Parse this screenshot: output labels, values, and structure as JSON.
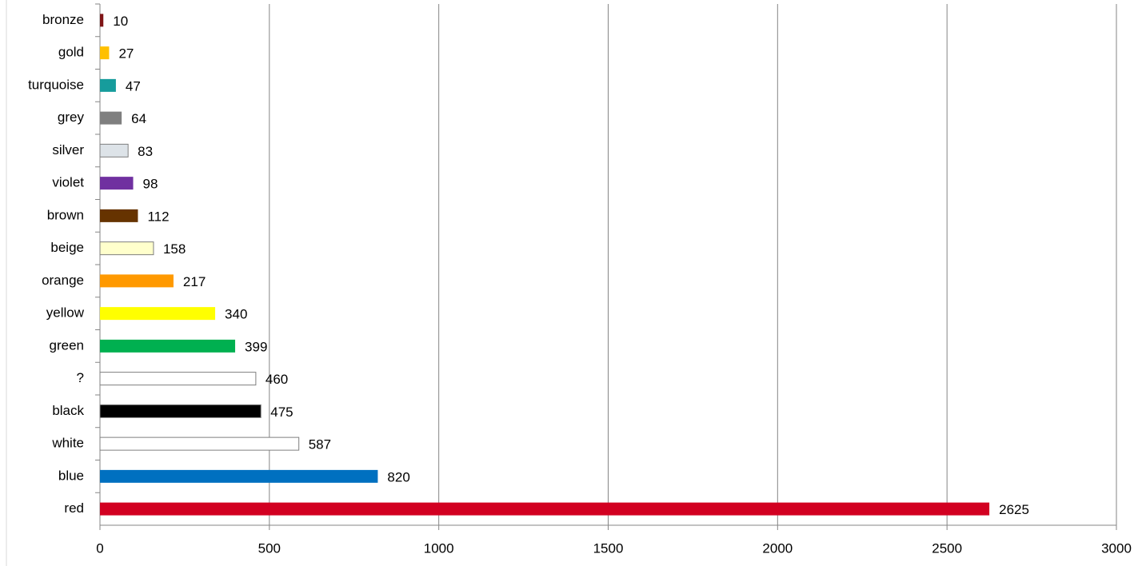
{
  "chart_data": {
    "type": "bar",
    "orientation": "horizontal",
    "categories": [
      "bronze",
      "gold",
      "turquoise",
      "grey",
      "silver",
      "violet",
      "brown",
      "beige",
      "orange",
      "yellow",
      "green",
      "?",
      "black",
      "white",
      "blue",
      "red"
    ],
    "values": [
      10,
      27,
      47,
      64,
      83,
      98,
      112,
      158,
      217,
      340,
      399,
      460,
      475,
      587,
      820,
      2625
    ],
    "colors": [
      "#7f1416",
      "#ffc000",
      "#169c9c",
      "#7f7f7f",
      "#dde3e8",
      "#7030a0",
      "#663300",
      "#ffffcc",
      "#ff9900",
      "#ffff00",
      "#00b050",
      "#ffffff",
      "#000000",
      "#ffffff",
      "#0070c0",
      "#d20021"
    ],
    "edgecolors": [
      null,
      null,
      null,
      null,
      "#7f7f7f",
      null,
      null,
      "#7f7f7f",
      null,
      null,
      null,
      "#7f7f7f",
      "#7f7f7f",
      "#7f7f7f",
      null,
      null
    ],
    "xlim": [
      0,
      3000
    ],
    "xticks": [
      0,
      500,
      1000,
      1500,
      2000,
      2500,
      3000
    ],
    "grid": true
  }
}
